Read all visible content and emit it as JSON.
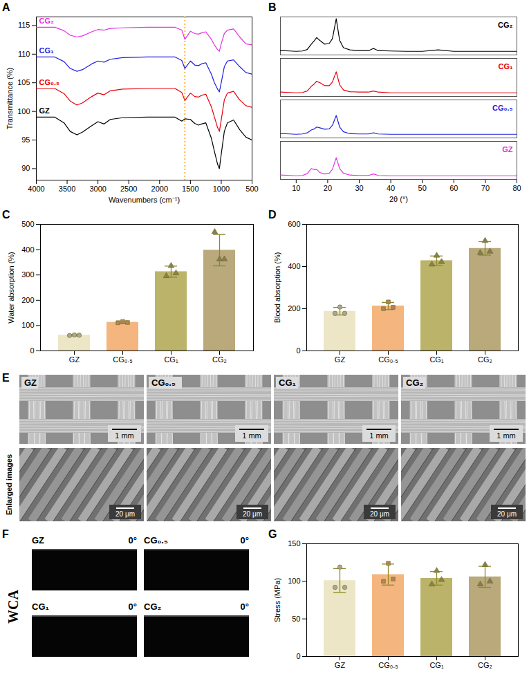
{
  "chart_data": [
    {
      "panel": "A",
      "type": "line",
      "x_label": "Wavenumbers (cm⁻¹)",
      "y_label": "Transmittance (%)",
      "xlim": [
        4000,
        500
      ],
      "xticks": [
        4000,
        3500,
        3000,
        2500,
        2000,
        1500,
        1000,
        500
      ],
      "ylim": [
        88,
        116.5
      ],
      "yticks": [
        90,
        95,
        100,
        105,
        110,
        115
      ],
      "x": [
        4000,
        3700,
        3550,
        3450,
        3340,
        3250,
        3100,
        3000,
        2900,
        2800,
        2600,
        2200,
        1900,
        1750,
        1640,
        1590,
        1500,
        1430,
        1370,
        1320,
        1250,
        1160,
        1110,
        1060,
        1030,
        1000,
        950,
        900,
        800,
        700,
        600,
        500
      ],
      "series": [
        {
          "name": "GZ",
          "color": "#000000",
          "values": [
            99.0,
            99.0,
            98.0,
            96.5,
            95.9,
            96.4,
            97.5,
            98.2,
            97.8,
            98.6,
            98.9,
            99.0,
            99.0,
            99.0,
            98.3,
            98.7,
            98.6,
            97.9,
            97.6,
            97.8,
            98.0,
            95.3,
            93.0,
            90.8,
            90.0,
            92.5,
            96.5,
            98.0,
            98.5,
            96.8,
            95.5,
            95.0
          ]
        },
        {
          "name": "CG₀.₅",
          "color": "#e8000b",
          "values": [
            104.0,
            104.0,
            103.1,
            101.8,
            101.1,
            101.5,
            102.6,
            103.2,
            102.9,
            103.6,
            103.9,
            104.0,
            104.0,
            104.0,
            103.3,
            101.9,
            103.2,
            102.6,
            102.5,
            102.8,
            103.0,
            100.8,
            99.0,
            97.2,
            96.5,
            98.5,
            102.0,
            103.2,
            103.5,
            102.0,
            101.0,
            100.7
          ]
        },
        {
          "name": "CG₁",
          "color": "#1f1fe0",
          "values": [
            109.5,
            109.5,
            108.7,
            107.5,
            107.0,
            107.3,
            108.3,
            108.8,
            108.6,
            109.1,
            109.4,
            109.5,
            109.5,
            109.5,
            108.9,
            107.5,
            108.8,
            108.1,
            108.0,
            108.3,
            108.5,
            106.5,
            105.0,
            103.9,
            103.4,
            105.0,
            107.8,
            108.8,
            109.0,
            107.8,
            106.8,
            106.5
          ]
        },
        {
          "name": "CG₂",
          "color": "#e62ee6",
          "values": [
            114.7,
            114.7,
            114.1,
            113.3,
            113.0,
            113.2,
            113.9,
            114.3,
            114.2,
            114.5,
            114.6,
            114.7,
            114.7,
            114.7,
            114.2,
            112.6,
            114.0,
            113.6,
            113.5,
            113.7,
            113.9,
            112.6,
            111.6,
            110.8,
            110.5,
            111.8,
            113.6,
            114.2,
            114.4,
            113.0,
            111.8,
            111.6
          ]
        }
      ],
      "annotations": [
        {
          "x": 1590,
          "color": "#ffa500",
          "line_style": "dotted"
        }
      ]
    },
    {
      "panel": "B",
      "type": "line",
      "x_label": "2θ (°)",
      "xlim": [
        5,
        80
      ],
      "xticks": [
        10,
        20,
        30,
        40,
        50,
        60,
        70,
        80
      ],
      "ylim": [
        0,
        105
      ],
      "tick_labels": "x",
      "x": [
        5,
        8,
        10,
        12,
        13.5,
        14.8,
        15.8,
        16.5,
        17.5,
        19,
        20.5,
        21.5,
        22.7,
        23.8,
        25,
        27,
        30,
        33,
        34.5,
        36,
        40,
        45,
        50,
        55,
        60,
        70,
        80
      ],
      "series": [
        {
          "name": "CG₂",
          "color": "#000000",
          "values": [
            12,
            11,
            10,
            11,
            15,
            30,
            40,
            48,
            40,
            30,
            32,
            45,
            100,
            40,
            20,
            14,
            12,
            12,
            18,
            12,
            11,
            10,
            10,
            14,
            10,
            10,
            10
          ]
        },
        {
          "name": "CG₁",
          "color": "#e8000b",
          "values": [
            12,
            11,
            10,
            11,
            15,
            28,
            35,
            42,
            38,
            30,
            30,
            40,
            68,
            32,
            18,
            13,
            12,
            12,
            15,
            12,
            10,
            10,
            10,
            10,
            10,
            10,
            10
          ]
        },
        {
          "name": "CG₀.₅",
          "color": "#1f1fe0",
          "values": [
            12,
            11,
            10,
            11,
            14,
            22,
            25,
            30,
            28,
            24,
            25,
            35,
            62,
            30,
            17,
            12,
            11,
            11,
            14,
            11,
            10,
            10,
            10,
            10,
            10,
            10,
            10
          ]
        },
        {
          "name": "GZ",
          "color": "#e62ee6",
          "values": [
            12,
            11,
            10,
            11,
            16,
            30,
            27,
            28,
            19,
            15,
            17,
            28,
            60,
            30,
            17,
            12,
            11,
            11,
            15,
            11,
            10,
            10,
            10,
            10,
            10,
            10,
            10
          ]
        }
      ]
    },
    {
      "panel": "C",
      "type": "bar",
      "y_label": "Water absorption (%)",
      "categories": [
        "GZ",
        "CG₀.₅",
        "CG₁",
        "CG₂"
      ],
      "values": [
        62,
        113,
        313,
        398
      ],
      "errors": [
        3,
        5,
        22,
        62
      ],
      "points": [
        [
          61,
          63,
          62
        ],
        [
          111,
          116,
          112
        ],
        [
          296,
          336,
          307
        ],
        [
          470,
          362,
          362
        ]
      ],
      "colors": [
        "#ece6c6",
        "#f4b67e",
        "#bbb36a",
        "#b9a97b"
      ],
      "ylim": [
        0,
        500
      ],
      "yticks": [
        0,
        100,
        200,
        300,
        400,
        500
      ]
    },
    {
      "panel": "D",
      "type": "bar",
      "y_label": "Blood absorption (%)",
      "categories": [
        "GZ",
        "CG₀.₅",
        "CG₁",
        "CG₂"
      ],
      "values": [
        188,
        213,
        428,
        486
      ],
      "errors": [
        18,
        17,
        22,
        32
      ],
      "points": [
        [
          178,
          208,
          178
        ],
        [
          200,
          232,
          207
        ],
        [
          410,
          452,
          422
        ],
        [
          465,
          522,
          471
        ]
      ],
      "colors": [
        "#ece6c6",
        "#f4b67e",
        "#bbb36a",
        "#b9a97b"
      ],
      "ylim": [
        0,
        600
      ],
      "yticks": [
        0,
        200,
        400,
        600
      ]
    },
    {
      "panel": "G",
      "type": "bar",
      "y_label": "Stress (MPa)",
      "categories": [
        "GZ",
        "CG₀.₅",
        "CG₁",
        "CG₂"
      ],
      "values": [
        101,
        109,
        104,
        106
      ],
      "errors": [
        16,
        14,
        9,
        14
      ],
      "points": [
        [
          92,
          119,
          92
        ],
        [
          100,
          124,
          103
        ],
        [
          96,
          114,
          102
        ],
        [
          96,
          122,
          100
        ]
      ],
      "colors": [
        "#ece6c6",
        "#f4b67e",
        "#bbb36a",
        "#b9a97b"
      ],
      "ylim": [
        0,
        150
      ],
      "yticks": [
        0,
        50,
        100,
        150
      ]
    }
  ],
  "image_panels": [
    {
      "panel": "E",
      "row_label": "Enlarged images",
      "images": [
        {
          "label": "GZ",
          "scale_bar": "1 mm",
          "enlarged_scale_bar": "20 μm"
        },
        {
          "label": "CG₀.₅",
          "scale_bar": "1 mm",
          "enlarged_scale_bar": "20 μm"
        },
        {
          "label": "CG₁",
          "scale_bar": "1 mm",
          "enlarged_scale_bar": "20 μm"
        },
        {
          "label": "CG₂",
          "scale_bar": "1 mm",
          "enlarged_scale_bar": "20 μm"
        }
      ]
    },
    {
      "panel": "F",
      "label": "WCA",
      "images": [
        {
          "label": "GZ",
          "angle": {
            "value": 0,
            "label": "0°"
          }
        },
        {
          "label": "CG₀.₅",
          "angle": {
            "value": 0,
            "label": "0°"
          }
        },
        {
          "label": "CG₁",
          "angle": {
            "value": 0,
            "label": "0°"
          }
        },
        {
          "label": "CG₂",
          "angle": {
            "value": 0,
            "label": "0°"
          }
        }
      ]
    }
  ]
}
